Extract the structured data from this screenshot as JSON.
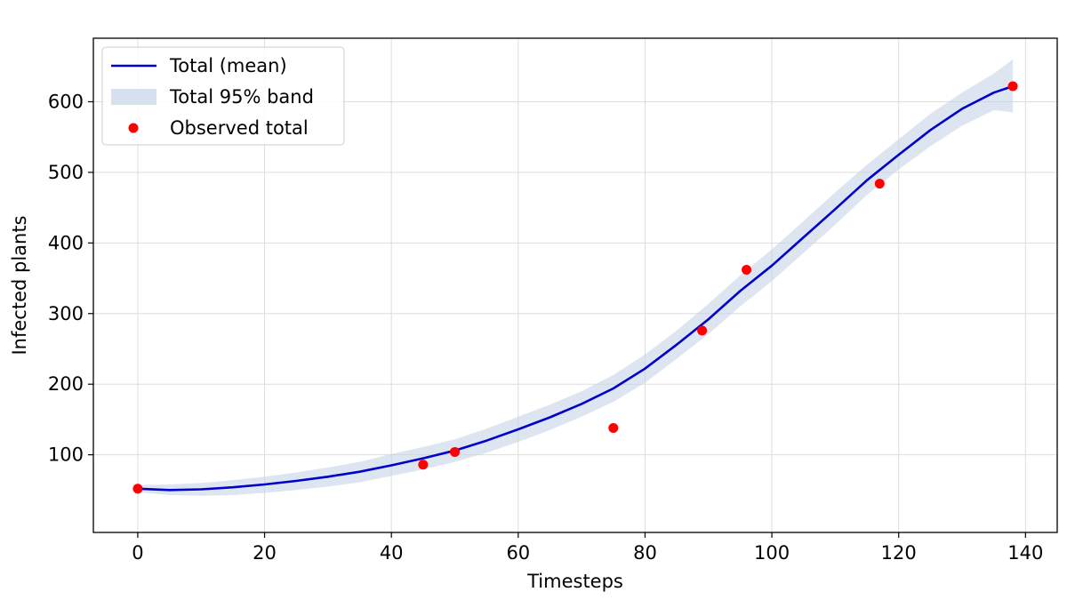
{
  "chart_data": {
    "type": "line",
    "xlabel": "Timesteps",
    "ylabel": "Infected plants",
    "xlim": [
      -7,
      145
    ],
    "ylim": [
      -10,
      690
    ],
    "x_ticks": [
      0,
      20,
      40,
      60,
      80,
      100,
      120,
      140
    ],
    "y_ticks": [
      100,
      200,
      300,
      400,
      500,
      600
    ],
    "grid": true,
    "legend_position": "top-left",
    "series": [
      {
        "name": "Total (mean)",
        "kind": "line",
        "color": "#0000cc",
        "x": [
          0,
          5,
          10,
          15,
          20,
          25,
          30,
          35,
          40,
          45,
          50,
          55,
          60,
          65,
          70,
          75,
          80,
          85,
          90,
          95,
          100,
          105,
          110,
          115,
          120,
          125,
          130,
          135,
          138
        ],
        "y": [
          52,
          50,
          51,
          54,
          58,
          63,
          69,
          76,
          85,
          95,
          106,
          120,
          136,
          153,
          172,
          194,
          222,
          256,
          292,
          332,
          368,
          408,
          448,
          489,
          525,
          560,
          590,
          613,
          622
        ]
      },
      {
        "name": "Total 95% band",
        "kind": "band",
        "color": "#c6d3e8",
        "x": [
          0,
          5,
          10,
          15,
          20,
          25,
          30,
          35,
          40,
          45,
          50,
          55,
          60,
          65,
          70,
          75,
          80,
          85,
          90,
          95,
          100,
          105,
          110,
          115,
          120,
          125,
          130,
          135,
          138
        ],
        "lower": [
          47,
          43,
          42,
          43,
          46,
          50,
          55,
          61,
          70,
          79,
          90,
          103,
          118,
          135,
          154,
          175,
          202,
          236,
          271,
          310,
          346,
          386,
          426,
          468,
          504,
          537,
          566,
          588,
          585
        ],
        "upper": [
          57,
          58,
          60,
          64,
          69,
          75,
          82,
          90,
          101,
          111,
          122,
          137,
          154,
          171,
          190,
          213,
          242,
          276,
          314,
          354,
          391,
          431,
          472,
          511,
          547,
          583,
          613,
          640,
          660
        ]
      },
      {
        "name": "Observed total",
        "kind": "scatter",
        "color": "#ff0000",
        "x": [
          0,
          45,
          50,
          75,
          89,
          96,
          117,
          138
        ],
        "y": [
          52,
          86,
          104,
          138,
          276,
          362,
          484,
          622
        ]
      }
    ]
  }
}
